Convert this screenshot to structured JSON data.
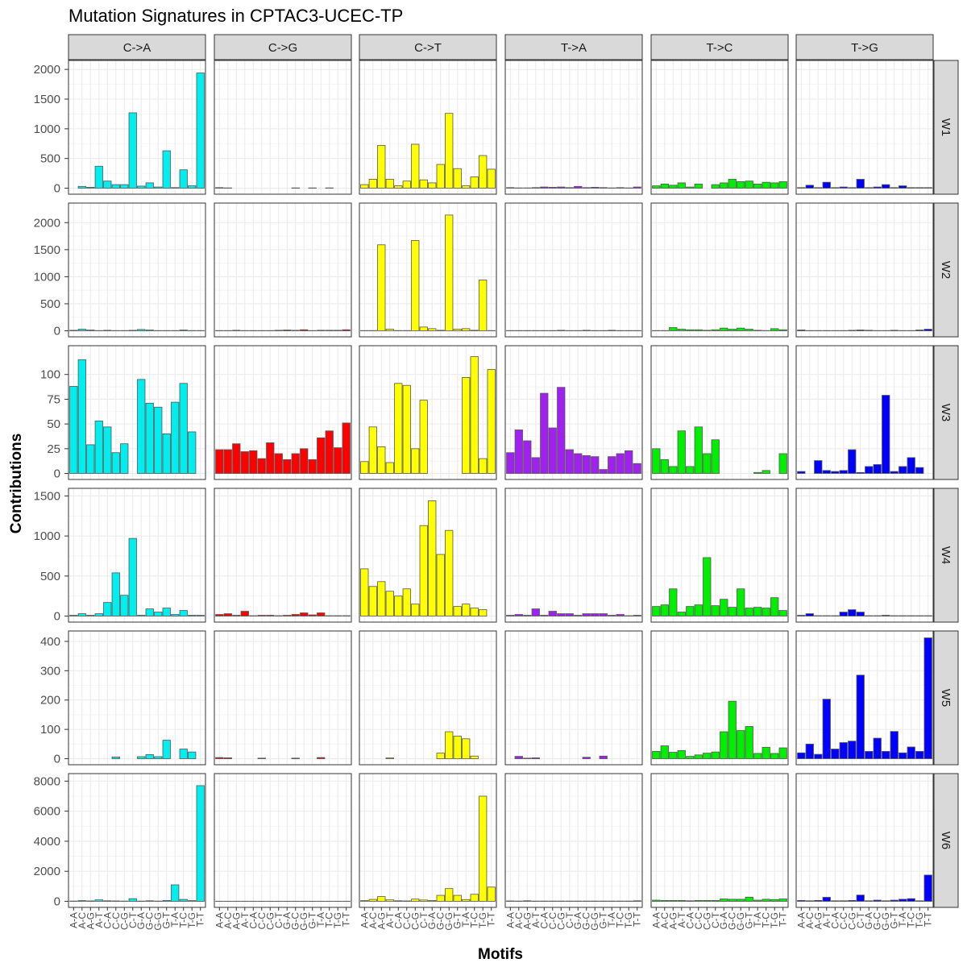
{
  "chart_data": {
    "type": "bar",
    "title": "Mutation Signatures in CPTAC3-UCEC-TP",
    "xlabel": "Motifs",
    "ylabel": "Contributions",
    "mutation_types": [
      "C->A",
      "C->G",
      "C->T",
      "T->A",
      "T->C",
      "T->G"
    ],
    "mutation_colors": [
      "#00EEEE",
      "#FF0000",
      "#FFFF00",
      "#A020F0",
      "#00EE00",
      "#0000FF"
    ],
    "motifs": [
      "A-A",
      "A-C",
      "A-G",
      "A-T",
      "C-A",
      "C-C",
      "C-G",
      "C-T",
      "G-A",
      "G-C",
      "G-G",
      "G-T",
      "T-A",
      "T-C",
      "T-G",
      "T-T"
    ],
    "signatures": [
      {
        "name": "W1",
        "ylim": [
          0,
          2050
        ],
        "yticks": [
          0,
          500,
          1000,
          1500,
          2000
        ],
        "values": {
          "C->A": [
            0,
            30,
            15,
            370,
            120,
            60,
            60,
            1270,
            35,
            90,
            20,
            630,
            10,
            310,
            40,
            1940
          ],
          "C->G": [
            10,
            5,
            0,
            0,
            0,
            0,
            0,
            0,
            0,
            5,
            0,
            5,
            0,
            5,
            0,
            0
          ],
          "C->T": [
            60,
            150,
            720,
            150,
            40,
            120,
            740,
            140,
            90,
            400,
            1260,
            330,
            40,
            190,
            550,
            320
          ],
          "T->A": [
            10,
            5,
            5,
            10,
            20,
            15,
            20,
            10,
            30,
            10,
            15,
            10,
            5,
            10,
            5,
            20
          ],
          "T->C": [
            40,
            70,
            50,
            90,
            20,
            70,
            0,
            60,
            90,
            150,
            110,
            120,
            70,
            100,
            90,
            110
          ],
          "T->G": [
            10,
            50,
            10,
            100,
            10,
            20,
            10,
            150,
            10,
            20,
            60,
            10,
            40,
            10,
            10,
            10
          ]
        }
      },
      {
        "name": "W2",
        "ylim": [
          0,
          2250
        ],
        "yticks": [
          0,
          500,
          1000,
          1500,
          2000
        ],
        "values": {
          "C->A": [
            10,
            30,
            15,
            5,
            10,
            5,
            5,
            10,
            25,
            15,
            5,
            5,
            5,
            15,
            5,
            5
          ],
          "C->G": [
            5,
            5,
            10,
            5,
            5,
            5,
            5,
            10,
            15,
            10,
            20,
            5,
            10,
            10,
            10,
            20
          ],
          "C->T": [
            5,
            5,
            1590,
            30,
            5,
            5,
            1670,
            70,
            40,
            10,
            2140,
            30,
            40,
            10,
            940,
            5
          ],
          "T->A": [
            5,
            5,
            5,
            5,
            5,
            5,
            10,
            5,
            5,
            10,
            5,
            5,
            10,
            5,
            5,
            5
          ],
          "T->C": [
            5,
            5,
            60,
            30,
            20,
            20,
            10,
            20,
            50,
            30,
            50,
            30,
            10,
            5,
            40,
            20
          ],
          "T->G": [
            15,
            5,
            5,
            5,
            5,
            5,
            10,
            15,
            10,
            5,
            5,
            10,
            5,
            5,
            15,
            30
          ]
        }
      },
      {
        "name": "W3",
        "ylim": [
          0,
          123
        ],
        "yticks": [
          0,
          25,
          50,
          75,
          100
        ],
        "values": {
          "C->A": [
            88,
            115,
            29,
            53,
            47,
            21,
            30,
            0,
            95,
            71,
            67,
            40,
            72,
            91,
            42,
            0
          ],
          "C->G": [
            24,
            24,
            30,
            22,
            23,
            15,
            31,
            20,
            14,
            20,
            25,
            14,
            36,
            43,
            26,
            51
          ],
          "C->T": [
            12,
            47,
            27,
            11,
            91,
            89,
            25,
            74,
            0,
            0,
            0,
            0,
            97,
            118,
            15,
            105
          ],
          "T->A": [
            21,
            44,
            33,
            16,
            81,
            46,
            87,
            24,
            20,
            18,
            17,
            4,
            17,
            20,
            23,
            10
          ],
          "T->C": [
            25,
            14,
            7,
            43,
            7,
            47,
            20,
            34,
            0,
            0,
            0,
            0,
            1,
            3,
            0,
            20
          ],
          "T->G": [
            2,
            0,
            13,
            3,
            2,
            3,
            24,
            1,
            7,
            9,
            79,
            2,
            7,
            16,
            6,
            0
          ]
        }
      },
      {
        "name": "W4",
        "ylim": [
          0,
          1520
        ],
        "yticks": [
          0,
          500,
          1000,
          1500
        ],
        "values": {
          "C->A": [
            10,
            30,
            10,
            30,
            170,
            540,
            260,
            970,
            10,
            90,
            50,
            100,
            20,
            70,
            10,
            10
          ],
          "C->G": [
            20,
            30,
            10,
            60,
            5,
            10,
            10,
            5,
            10,
            20,
            40,
            15,
            40,
            5,
            5,
            5
          ],
          "C->T": [
            590,
            370,
            430,
            310,
            250,
            340,
            150,
            1130,
            1440,
            770,
            1070,
            120,
            150,
            100,
            80,
            0
          ],
          "T->A": [
            10,
            20,
            10,
            90,
            10,
            60,
            30,
            30,
            10,
            30,
            30,
            30,
            10,
            20,
            5,
            10
          ],
          "T->C": [
            120,
            140,
            340,
            50,
            120,
            140,
            730,
            130,
            210,
            110,
            340,
            100,
            110,
            100,
            230,
            70
          ],
          "T->G": [
            10,
            30,
            5,
            5,
            5,
            50,
            80,
            50,
            5,
            5,
            10,
            5,
            5,
            5,
            5,
            5
          ]
        }
      },
      {
        "name": "W5",
        "ylim": [
          0,
          415
        ],
        "yticks": [
          0,
          100,
          200,
          300,
          400
        ],
        "values": {
          "C->A": [
            0,
            0,
            0,
            0,
            0,
            6,
            0,
            0,
            7,
            14,
            7,
            63,
            0,
            33,
            23,
            0
          ],
          "C->G": [
            4,
            3,
            0,
            0,
            0,
            2,
            0,
            0,
            0,
            2,
            0,
            0,
            4,
            0,
            0,
            0
          ],
          "C->T": [
            0,
            0,
            0,
            3,
            0,
            0,
            0,
            0,
            0,
            19,
            92,
            77,
            68,
            9,
            0,
            0
          ],
          "T->A": [
            0,
            8,
            2,
            3,
            0,
            0,
            0,
            0,
            0,
            5,
            0,
            9,
            0,
            0,
            0,
            0
          ],
          "T->C": [
            25,
            44,
            22,
            28,
            8,
            13,
            19,
            23,
            92,
            196,
            96,
            110,
            18,
            39,
            18,
            37
          ],
          "T->G": [
            20,
            50,
            15,
            203,
            33,
            55,
            60,
            285,
            25,
            70,
            25,
            93,
            20,
            40,
            25,
            412
          ]
        }
      },
      {
        "name": "W6",
        "ylim": [
          0,
          8100
        ],
        "yticks": [
          0,
          2000,
          4000,
          6000,
          8000
        ],
        "values": {
          "C->A": [
            20,
            50,
            30,
            100,
            40,
            30,
            20,
            180,
            20,
            40,
            20,
            60,
            1100,
            130,
            50,
            7700
          ],
          "C->G": [
            10,
            10,
            10,
            10,
            10,
            10,
            10,
            10,
            10,
            10,
            10,
            10,
            10,
            10,
            10,
            10
          ],
          "C->T": [
            50,
            130,
            320,
            100,
            40,
            30,
            150,
            90,
            60,
            400,
            850,
            400,
            120,
            470,
            7000,
            950
          ],
          "T->A": [
            30,
            20,
            40,
            20,
            20,
            20,
            20,
            20,
            20,
            20,
            20,
            20,
            20,
            20,
            20,
            40
          ],
          "T->C": [
            80,
            60,
            60,
            60,
            40,
            60,
            60,
            60,
            160,
            140,
            140,
            280,
            80,
            140,
            120,
            160
          ],
          "T->G": [
            60,
            40,
            60,
            270,
            40,
            40,
            60,
            420,
            40,
            80,
            40,
            80,
            140,
            180,
            40,
            1750
          ]
        }
      }
    ]
  }
}
